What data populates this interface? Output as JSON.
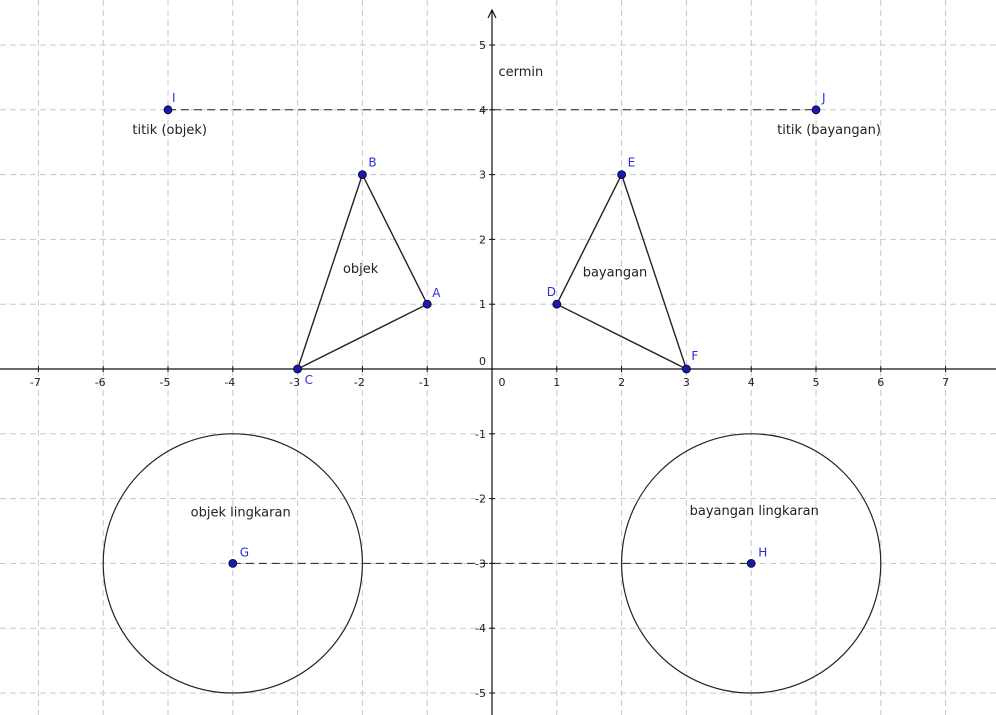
{
  "axes": {
    "x_range": [
      -7.5,
      7.7
    ],
    "y_range": [
      -5.3,
      5.6
    ],
    "x_ticks": [
      -7,
      -6,
      -5,
      -4,
      -3,
      -2,
      -1,
      0,
      1,
      2,
      3,
      4,
      5,
      6,
      7
    ],
    "x_tick_labels": [
      "-7",
      "-6",
      "-5",
      "-4",
      "-3",
      "-2",
      "-1",
      "0",
      "1",
      "2",
      "3",
      "4",
      "5",
      "6",
      "7"
    ],
    "y_ticks": [
      -5,
      -4,
      -3,
      -2,
      -1,
      0,
      1,
      2,
      3,
      4,
      5
    ],
    "y_tick_labels": [
      "-5",
      "-4",
      "-3",
      "-2",
      "-1",
      "0",
      "1",
      "2",
      "3",
      "4",
      "5"
    ],
    "grid": true
  },
  "points": [
    {
      "id": "A",
      "label": "A",
      "x": -1,
      "y": 1
    },
    {
      "id": "B",
      "label": "B",
      "x": -2,
      "y": 3
    },
    {
      "id": "C",
      "label": "C",
      "x": -3,
      "y": 0
    },
    {
      "id": "D",
      "label": "D",
      "x": 1,
      "y": 1
    },
    {
      "id": "E",
      "label": "E",
      "x": 2,
      "y": 3
    },
    {
      "id": "F",
      "label": "F",
      "x": 3,
      "y": 0
    },
    {
      "id": "G",
      "label": "G",
      "x": -4,
      "y": -3
    },
    {
      "id": "H",
      "label": "H",
      "x": 4,
      "y": -3
    },
    {
      "id": "I",
      "label": "I",
      "x": -5,
      "y": 4
    },
    {
      "id": "J",
      "label": "J",
      "x": 5,
      "y": 4
    }
  ],
  "polygons": [
    {
      "name": "triangle-object",
      "vertices": [
        "A",
        "B",
        "C"
      ]
    },
    {
      "name": "triangle-image",
      "vertices": [
        "D",
        "E",
        "F"
      ]
    }
  ],
  "circles": [
    {
      "name": "circle-object",
      "center": "G",
      "radius": 2
    },
    {
      "name": "circle-image",
      "center": "H",
      "radius": 2
    }
  ],
  "dashed_lines": [
    {
      "name": "dashed-line-I-J",
      "from": "I",
      "to": "J"
    },
    {
      "name": "dashed-line-G-H",
      "from": "G",
      "to": "H"
    }
  ],
  "captions": [
    {
      "id": "cermin",
      "text": "cermin",
      "x": 0.1,
      "y": 4.52
    },
    {
      "id": "titik-objek",
      "text": "titik (objek)",
      "x": -5.55,
      "y": 3.63
    },
    {
      "id": "titik-bayangan",
      "text": "titik (bayangan)",
      "x": 4.4,
      "y": 3.63
    },
    {
      "id": "objek",
      "text": "objek",
      "x": -2.3,
      "y": 1.48
    },
    {
      "id": "bayangan",
      "text": "bayangan",
      "x": 1.4,
      "y": 1.43
    },
    {
      "id": "objek-lingkaran",
      "text": "objek lingkaran",
      "x": -4.65,
      "y": -2.28
    },
    {
      "id": "bayangan-lingkaran",
      "text": "bayangan lingkaran",
      "x": 3.05,
      "y": -2.25
    }
  ],
  "colors": {
    "point": "#1a1aa6",
    "point_label": "#2b2bdd",
    "line": "#222222",
    "grid": "#c8c8c8",
    "axis": "#111111"
  }
}
